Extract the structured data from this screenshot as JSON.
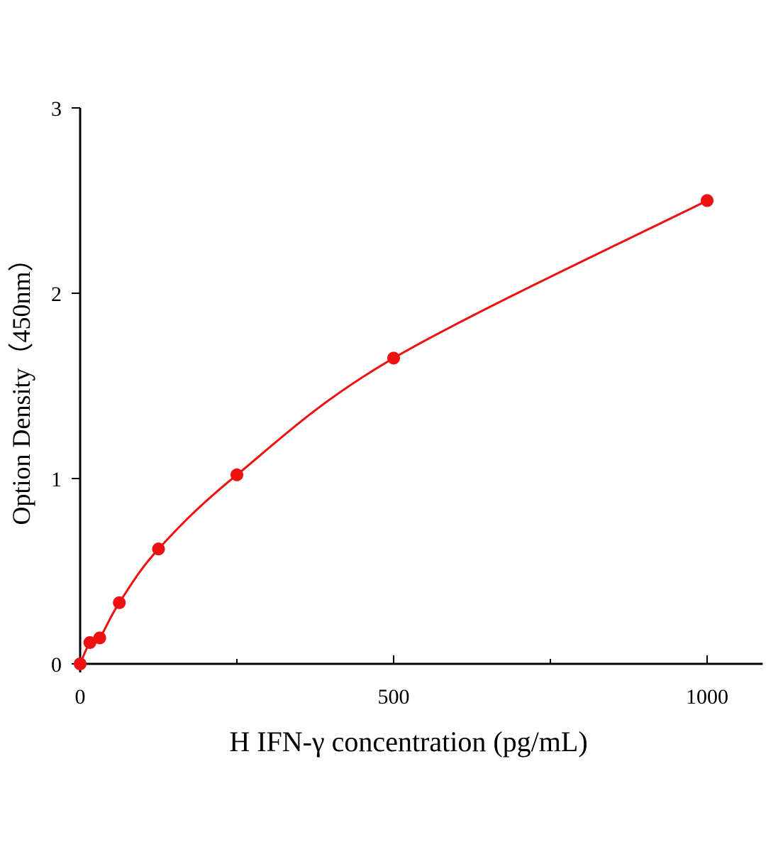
{
  "chart_data": {
    "type": "scatter",
    "title": "",
    "xlabel": "H IFN-γ concentration (pg/mL)",
    "ylabel": "Option Density（450nm）",
    "xlim": [
      0,
      1100
    ],
    "ylim": [
      0,
      3
    ],
    "x_ticks": [
      0,
      500,
      1000
    ],
    "x_minor_ticks": [
      250,
      750
    ],
    "y_ticks": [
      0,
      1,
      2,
      3
    ],
    "grid": false,
    "series": [
      {
        "x": [
          0,
          15.6,
          31.25,
          62.5,
          125,
          250,
          500,
          1000
        ],
        "y": [
          0,
          0.115,
          0.14,
          0.33,
          0.62,
          1.02,
          1.65,
          2.5
        ],
        "fit_curve": true,
        "color": "#ee1111"
      }
    ]
  }
}
